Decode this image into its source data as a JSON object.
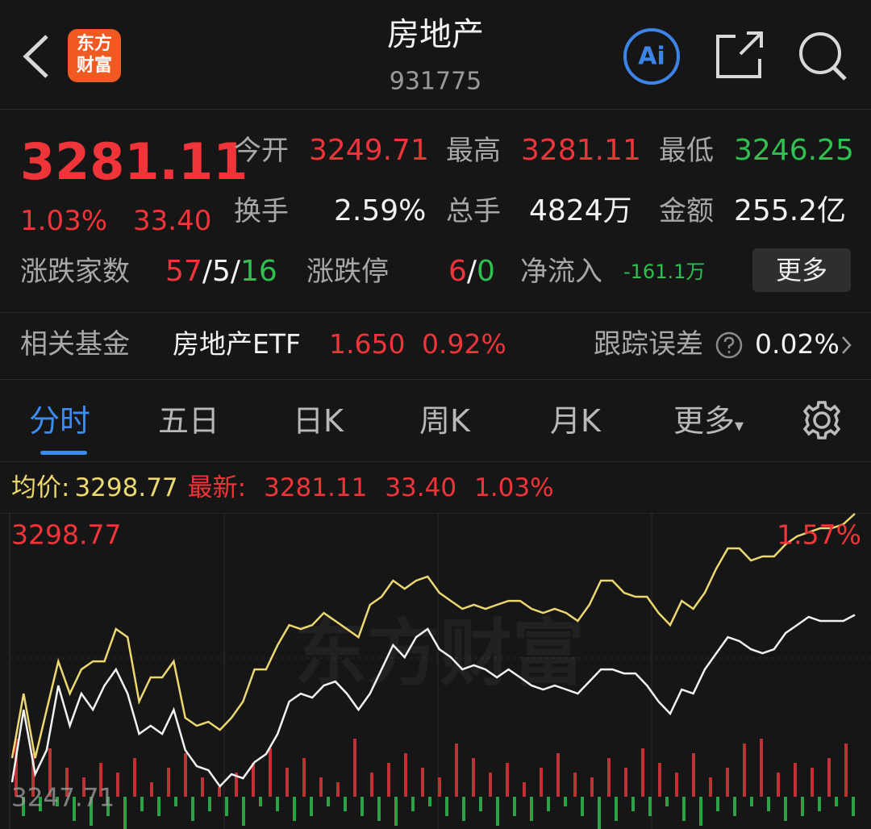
{
  "header": {
    "title": "房地产",
    "code": "931775",
    "logo": [
      "东方",
      "财富"
    ],
    "ai": "Ai"
  },
  "quote": {
    "price": "3281.11",
    "change_pct": "1.03%",
    "change": "33.40",
    "stats": [
      {
        "label": "今开",
        "value": "3249.71"
      },
      {
        "label": "最高",
        "value": "3281.11"
      },
      {
        "label": "最低",
        "value": "3246.25"
      },
      {
        "label": "换手",
        "value": "2.59%"
      },
      {
        "label": "总手",
        "value": "4824万"
      },
      {
        "label": "金额",
        "value": "255.2亿"
      }
    ],
    "breadth": {
      "label": "涨跌家数",
      "up": "57",
      "flat": "5",
      "down": "16",
      "sep": "/"
    },
    "limits": {
      "label": "涨跌停",
      "up": "6",
      "down": "0"
    },
    "net_inflow": {
      "label": "净流入",
      "value": "-161.1万"
    },
    "more": "更多"
  },
  "fund": {
    "label": "相关基金",
    "name": "房地产ETF",
    "price": "1.650",
    "change_pct": "0.92%",
    "tracking_label": "跟踪误差",
    "tracking_value": "0.02%"
  },
  "tabs": [
    "分时",
    "五日",
    "日K",
    "周K",
    "月K",
    "更多"
  ],
  "legend": {
    "avg_label": "均价:",
    "avg": "3298.77",
    "latest_label": "最新:",
    "latest": "3281.11",
    "change": "33.40",
    "change_pct": "1.03%"
  },
  "chart": {
    "ylim": [
      3247.71,
      3298.77
    ],
    "top_pct": "1.57%",
    "watermark": "东方财富",
    "price": [
      3251.92,
      3264.58,
      3253.32,
      3257.54,
      3268.8,
      3261.77,
      3267.39,
      3264.58,
      3268.8,
      3271.61,
      3267.39,
      3260.36,
      3261.77,
      3260.36,
      3264.58,
      3257.54,
      3254.73,
      3254.03,
      3251.21,
      3253.32,
      3252.62,
      3255.43,
      3256.84,
      3260.36,
      3265.99,
      3267.39,
      3266.69,
      3268.8,
      3269.5,
      3267.39,
      3264.58,
      3267.39,
      3271.61,
      3275.84,
      3273.73,
      3277.24,
      3278.65,
      3275.13,
      3273.73,
      3271.61,
      3272.32,
      3271.61,
      3270.21,
      3271.61,
      3270.21,
      3268.8,
      3268.1,
      3268.8,
      3268.1,
      3267.39,
      3269.5,
      3271.61,
      3271.61,
      3270.91,
      3270.91,
      3268.8,
      3265.99,
      3263.88,
      3268.1,
      3267.39,
      3271.61,
      3274.43,
      3277.24,
      3276.54,
      3275.13,
      3274.43,
      3275.13,
      3277.95,
      3279.35,
      3280.76,
      3280.06,
      3280.06,
      3280.06,
      3281.11
    ],
    "average": [
      3256.14,
      3267.39,
      3256.14,
      3264.58,
      3273.02,
      3267.39,
      3271.61,
      3273.02,
      3273.02,
      3278.65,
      3277.24,
      3265.99,
      3270.21,
      3270.21,
      3273.02,
      3263.17,
      3261.77,
      3262.47,
      3261.06,
      3263.17,
      3265.99,
      3271.61,
      3271.61,
      3275.84,
      3279.35,
      3278.65,
      3279.35,
      3281.46,
      3280.06,
      3278.65,
      3277.24,
      3282.87,
      3284.28,
      3287.09,
      3285.68,
      3287.09,
      3287.8,
      3284.98,
      3283.57,
      3282.17,
      3282.87,
      3282.17,
      3282.87,
      3283.57,
      3283.57,
      3282.17,
      3281.46,
      3282.17,
      3281.46,
      3280.06,
      3282.87,
      3287.09,
      3287.09,
      3284.98,
      3284.28,
      3284.28,
      3281.46,
      3279.35,
      3283.57,
      3282.17,
      3284.98,
      3289.2,
      3292.72,
      3292.72,
      3290.61,
      3291.31,
      3291.31,
      3293.42,
      3294.83,
      3295.53,
      3296.24,
      3296.24,
      3296.94,
      3298.77
    ],
    "volume_up": [
      60,
      45,
      50,
      30,
      20,
      35,
      25,
      40,
      15,
      30,
      45,
      20,
      10,
      25,
      35,
      50,
      30,
      40,
      20,
      15,
      60,
      25,
      35,
      45,
      30,
      20,
      55,
      40,
      25,
      35,
      15,
      30,
      45,
      25,
      20,
      40,
      30,
      50,
      35,
      25,
      45,
      20,
      30,
      55,
      60,
      25,
      35,
      30,
      40,
      55
    ],
    "volume_down": [
      20,
      15,
      10,
      25,
      30,
      20,
      35,
      15,
      20,
      10,
      25,
      15,
      20,
      30,
      10,
      15,
      25,
      20,
      10,
      15,
      20,
      25,
      30,
      15,
      10,
      20,
      25,
      15,
      30,
      20,
      25,
      15,
      10,
      20,
      35,
      25,
      15,
      20,
      10,
      25,
      30,
      15,
      20,
      10,
      15,
      25,
      20,
      15,
      10,
      20
    ]
  }
}
